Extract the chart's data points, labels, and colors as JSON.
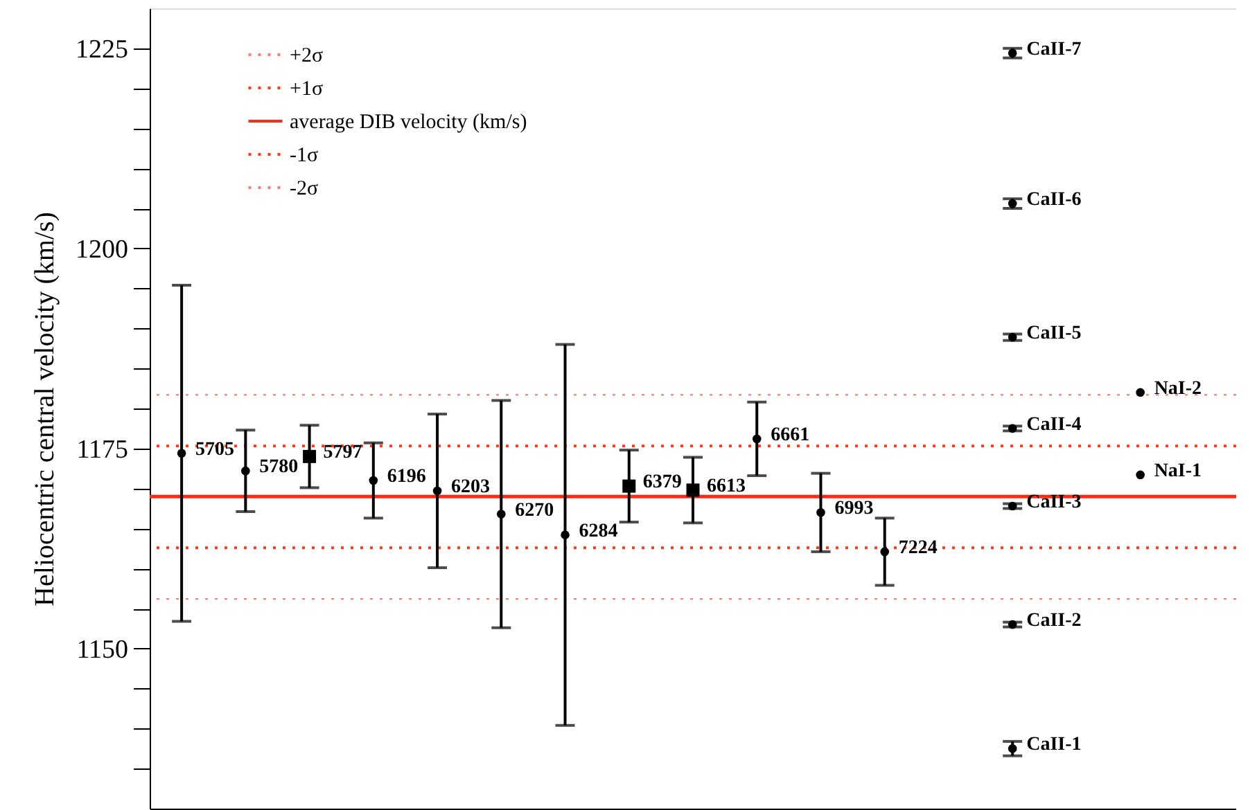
{
  "chart_data": {
    "type": "scatter",
    "ylabel": "Heliocentric central velocity (km/s)",
    "categories": [
      null,
      null,
      null,
      null,
      null,
      null,
      null,
      null,
      null,
      null,
      null,
      null,
      null,
      null,
      null,
      null,
      null
    ],
    "ylim": [
      1130,
      1230
    ],
    "yticks": [
      {
        "value": 1135,
        "label": null
      },
      {
        "value": 1140,
        "label": null
      },
      {
        "value": 1145,
        "label": null
      },
      1150,
      {
        "value": 1155,
        "label": null
      },
      {
        "value": 1160,
        "label": null
      },
      {
        "value": 1165,
        "label": null
      },
      {
        "value": 1170,
        "label": null
      },
      1175,
      {
        "value": 1180,
        "label": null
      },
      {
        "value": 1185,
        "label": null
      },
      {
        "value": 1190,
        "label": null
      },
      {
        "value": 1195,
        "label": null
      },
      1200,
      {
        "value": 1205,
        "label": null
      },
      {
        "value": 1210,
        "label": null
      },
      {
        "value": 1215,
        "label": null
      },
      {
        "value": 1220,
        "label": null
      },
      1225
    ],
    "tick_labels": "y",
    "grid": false,
    "legend": "top left",
    "series": [
      {
        "name": "5705",
        "color": "#000000",
        "marker": "circle",
        "values": [
          1174.4,
          null,
          null,
          null,
          null,
          null,
          null,
          null,
          null,
          null,
          null,
          null,
          null,
          null,
          null,
          null,
          null
        ],
        "errors": [
          21,
          null,
          null,
          null,
          null,
          null,
          null,
          null,
          null,
          null,
          null,
          null,
          null,
          null,
          null,
          null,
          null
        ]
      },
      {
        "name": "5780",
        "color": "#000000",
        "marker": "circle",
        "values": [
          null,
          1172.2,
          null,
          null,
          null,
          null,
          null,
          null,
          null,
          null,
          null,
          null,
          null,
          null,
          null,
          null,
          null
        ],
        "errors": [
          null,
          5.1,
          null,
          null,
          null,
          null,
          null,
          null,
          null,
          null,
          null,
          null,
          null,
          null,
          null,
          null,
          null
        ]
      },
      {
        "name": "5797",
        "color": "#000000",
        "marker": "square",
        "values": [
          null,
          null,
          1174.0,
          null,
          null,
          null,
          null,
          null,
          null,
          null,
          null,
          null,
          null,
          null,
          null,
          null,
          null
        ],
        "errors": [
          null,
          null,
          3.9,
          null,
          null,
          null,
          null,
          null,
          null,
          null,
          null,
          null,
          null,
          null,
          null,
          null,
          null
        ]
      },
      {
        "name": "6196",
        "color": "#000000",
        "marker": "circle",
        "values": [
          null,
          null,
          null,
          1171.0,
          null,
          null,
          null,
          null,
          null,
          null,
          null,
          null,
          null,
          null,
          null,
          null,
          null
        ],
        "errors": [
          null,
          null,
          null,
          4.7,
          null,
          null,
          null,
          null,
          null,
          null,
          null,
          null,
          null,
          null,
          null,
          null,
          null
        ]
      },
      {
        "name": "6203",
        "color": "#000000",
        "marker": "circle",
        "values": [
          null,
          null,
          null,
          null,
          1169.7,
          null,
          null,
          null,
          null,
          null,
          null,
          null,
          null,
          null,
          null,
          null,
          null
        ],
        "errors": [
          null,
          null,
          null,
          null,
          9.6,
          null,
          null,
          null,
          null,
          null,
          null,
          null,
          null,
          null,
          null,
          null,
          null
        ]
      },
      {
        "name": "6270",
        "color": "#000000",
        "marker": "circle",
        "values": [
          null,
          null,
          null,
          null,
          null,
          1166.8,
          null,
          null,
          null,
          null,
          null,
          null,
          null,
          null,
          null,
          null,
          null
        ],
        "errors": [
          null,
          null,
          null,
          null,
          null,
          14.2,
          null,
          null,
          null,
          null,
          null,
          null,
          null,
          null,
          null,
          null,
          null
        ]
      },
      {
        "name": "6284",
        "color": "#000000",
        "marker": "circle",
        "values": [
          null,
          null,
          null,
          null,
          null,
          null,
          1164.2,
          null,
          null,
          null,
          null,
          null,
          null,
          null,
          null,
          null,
          null
        ],
        "errors": [
          null,
          null,
          null,
          null,
          null,
          null,
          23.8,
          null,
          null,
          null,
          null,
          null,
          null,
          null,
          null,
          null,
          null
        ]
      },
      {
        "name": "6379",
        "color": "#000000",
        "marker": "square",
        "values": [
          null,
          null,
          null,
          null,
          null,
          null,
          null,
          1170.3,
          null,
          null,
          null,
          null,
          null,
          null,
          null,
          null,
          null
        ],
        "errors": [
          null,
          null,
          null,
          null,
          null,
          null,
          null,
          4.5,
          null,
          null,
          null,
          null,
          null,
          null,
          null,
          null,
          null
        ]
      },
      {
        "name": "6613",
        "color": "#000000",
        "marker": "square",
        "values": [
          null,
          null,
          null,
          null,
          null,
          null,
          null,
          null,
          1169.8,
          null,
          null,
          null,
          null,
          null,
          null,
          null,
          null
        ],
        "errors": [
          null,
          null,
          null,
          null,
          null,
          null,
          null,
          null,
          4.1,
          null,
          null,
          null,
          null,
          null,
          null,
          null,
          null
        ]
      },
      {
        "name": "6661",
        "color": "#000000",
        "marker": "circle",
        "values": [
          null,
          null,
          null,
          null,
          null,
          null,
          null,
          null,
          null,
          1176.2,
          null,
          null,
          null,
          null,
          null,
          null,
          null
        ],
        "errors": [
          null,
          null,
          null,
          null,
          null,
          null,
          null,
          null,
          null,
          4.6,
          null,
          null,
          null,
          null,
          null,
          null,
          null
        ]
      },
      {
        "name": "6993",
        "color": "#000000",
        "marker": "circle",
        "values": [
          null,
          null,
          null,
          null,
          null,
          null,
          null,
          null,
          null,
          null,
          1167.0,
          null,
          null,
          null,
          null,
          null,
          null
        ],
        "errors": [
          null,
          null,
          null,
          null,
          null,
          null,
          null,
          null,
          null,
          null,
          4.9,
          null,
          null,
          null,
          null,
          null,
          null
        ]
      },
      {
        "name": "7224",
        "color": "#000000",
        "marker": "circle",
        "values": [
          null,
          null,
          null,
          null,
          null,
          null,
          null,
          null,
          null,
          null,
          null,
          1162.1,
          null,
          null,
          null,
          null,
          null
        ],
        "errors": [
          null,
          null,
          null,
          null,
          null,
          null,
          null,
          null,
          null,
          null,
          null,
          4.2,
          null,
          null,
          null,
          null,
          null
        ]
      },
      {
        "name": "CaII-1",
        "color": "#000000",
        "marker": "circle",
        "values": [
          null,
          null,
          null,
          null,
          null,
          null,
          null,
          null,
          null,
          null,
          null,
          null,
          null,
          1137.5,
          null,
          null,
          null
        ],
        "errors": [
          null,
          null,
          null,
          null,
          null,
          null,
          null,
          null,
          null,
          null,
          null,
          null,
          null,
          0.9,
          null,
          null,
          null
        ]
      },
      {
        "name": "CaII-2",
        "color": "#000000",
        "marker": "circle",
        "values": [
          null,
          null,
          null,
          null,
          null,
          null,
          null,
          null,
          null,
          null,
          null,
          null,
          null,
          1153.0,
          null,
          null,
          null
        ],
        "errors": [
          null,
          null,
          null,
          null,
          null,
          null,
          null,
          null,
          null,
          null,
          null,
          null,
          null,
          0.3,
          null,
          null,
          null
        ]
      },
      {
        "name": "CaII-3",
        "color": "#000000",
        "marker": "circle",
        "values": [
          null,
          null,
          null,
          null,
          null,
          null,
          null,
          null,
          null,
          null,
          null,
          null,
          null,
          1167.8,
          null,
          null,
          null
        ],
        "errors": [
          null,
          null,
          null,
          null,
          null,
          null,
          null,
          null,
          null,
          null,
          null,
          null,
          null,
          0.3,
          null,
          null,
          null
        ]
      },
      {
        "name": "CaII-4",
        "color": "#000000",
        "marker": "circle",
        "values": [
          null,
          null,
          null,
          null,
          null,
          null,
          null,
          null,
          null,
          null,
          null,
          null,
          null,
          1177.5,
          null,
          null,
          null
        ],
        "errors": [
          null,
          null,
          null,
          null,
          null,
          null,
          null,
          null,
          null,
          null,
          null,
          null,
          null,
          0.3,
          null,
          null,
          null
        ]
      },
      {
        "name": "CaII-5",
        "color": "#000000",
        "marker": "circle",
        "values": [
          null,
          null,
          null,
          null,
          null,
          null,
          null,
          null,
          null,
          null,
          null,
          null,
          null,
          1188.9,
          null,
          null,
          null
        ],
        "errors": [
          null,
          null,
          null,
          null,
          null,
          null,
          null,
          null,
          null,
          null,
          null,
          null,
          null,
          0.4,
          null,
          null,
          null
        ]
      },
      {
        "name": "CaII-6",
        "color": "#000000",
        "marker": "circle",
        "values": [
          null,
          null,
          null,
          null,
          null,
          null,
          null,
          null,
          null,
          null,
          null,
          null,
          null,
          1205.6,
          null,
          null,
          null
        ],
        "errors": [
          null,
          null,
          null,
          null,
          null,
          null,
          null,
          null,
          null,
          null,
          null,
          null,
          null,
          0.6,
          null,
          null,
          null
        ]
      },
      {
        "name": "CaII-7",
        "color": "#000000",
        "marker": "circle",
        "values": [
          null,
          null,
          null,
          null,
          null,
          null,
          null,
          null,
          null,
          null,
          null,
          null,
          null,
          1224.4,
          null,
          null,
          null
        ],
        "errors": [
          null,
          null,
          null,
          null,
          null,
          null,
          null,
          null,
          null,
          null,
          null,
          null,
          null,
          0.6,
          null,
          null,
          null
        ]
      },
      {
        "name": "NaI-1",
        "color": "#000000",
        "marker": "circle",
        "values": [
          null,
          null,
          null,
          null,
          null,
          null,
          null,
          null,
          null,
          null,
          null,
          null,
          null,
          null,
          null,
          1171.7,
          null
        ]
      },
      {
        "name": "NaI-2",
        "color": "#000000",
        "marker": "circle",
        "values": [
          null,
          null,
          null,
          null,
          null,
          null,
          null,
          null,
          null,
          null,
          null,
          null,
          null,
          null,
          null,
          1182.0,
          null
        ]
      }
    ],
    "ref_lines": [
      {
        "axis": "y",
        "value": 1181.7,
        "label": "+2σ",
        "color": "#f08080",
        "line_style": "dotted"
      },
      {
        "axis": "y",
        "value": 1175.3,
        "label": "+1σ",
        "color": "#ff3b1f",
        "line_style": "dotted"
      },
      {
        "axis": "y",
        "value": 1169.0,
        "label": "average DIB velocity (km/s)",
        "color": "#ff2a12",
        "line_style": "solid"
      },
      {
        "axis": "y",
        "value": 1162.6,
        "label": "-1σ",
        "color": "#ff3b1f",
        "line_style": "dotted"
      },
      {
        "axis": "y",
        "value": 1156.2,
        "label": "-2σ",
        "color": "#f08080",
        "line_style": "dotted"
      }
    ]
  }
}
